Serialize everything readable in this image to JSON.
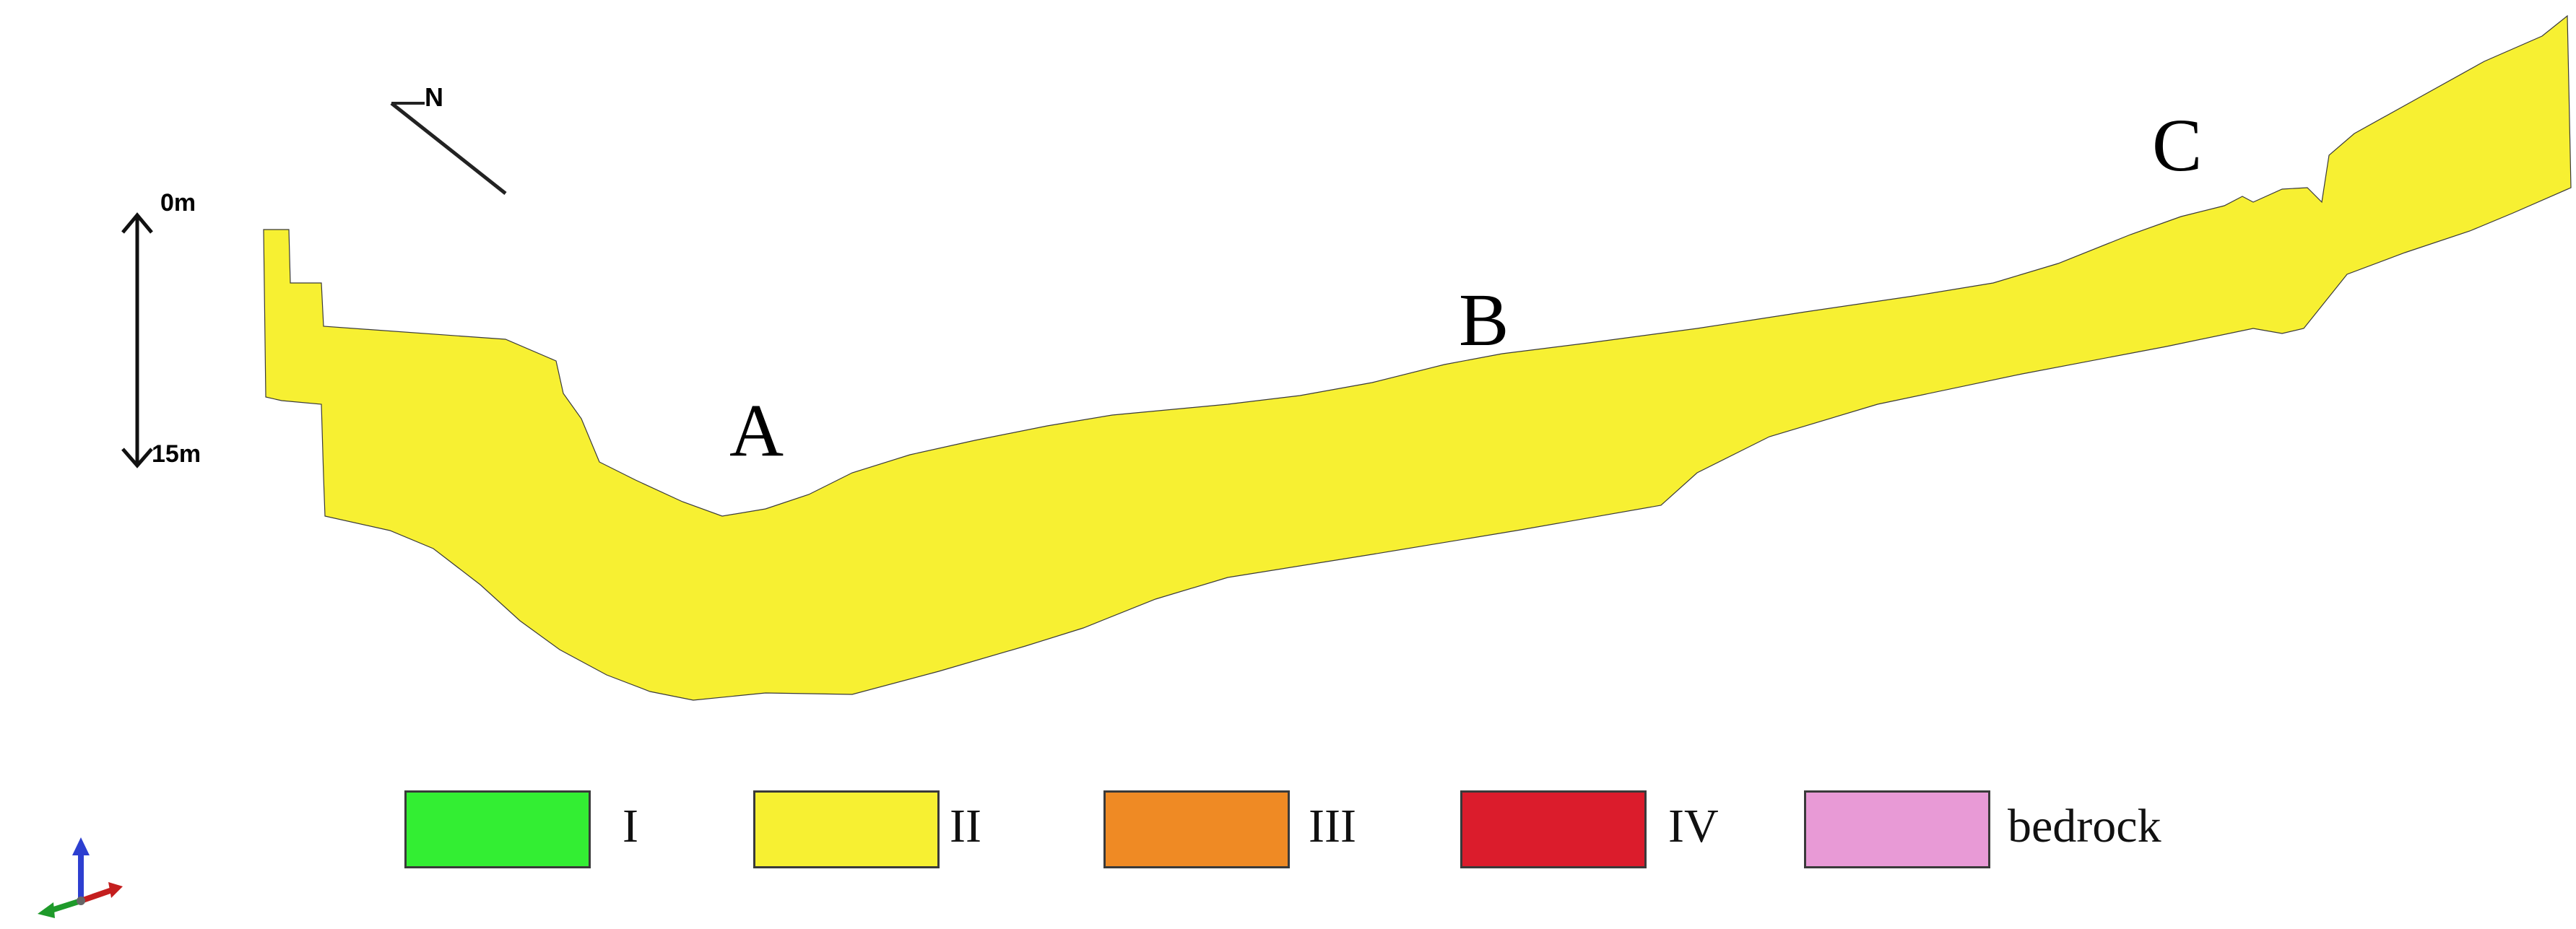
{
  "figure": {
    "north_label": "N",
    "depth_scale": {
      "top_label": "0m",
      "bottom_label": "15m"
    },
    "section_points": [
      "A",
      "B",
      "C"
    ],
    "axis_triad_icon": "xyz-axis-triad-icon"
  },
  "legend": [
    {
      "label": "I",
      "color": "#33ee33"
    },
    {
      "label": "II",
      "color": "#f7f032"
    },
    {
      "label": "III",
      "color": "#ef8a24"
    },
    {
      "label": "IV",
      "color": "#db1c2c"
    },
    {
      "label": "bedrock",
      "color": "#e89ad6"
    }
  ],
  "colors": {
    "grid_line": "#b8ad10",
    "outline": "#3a3a3a"
  }
}
